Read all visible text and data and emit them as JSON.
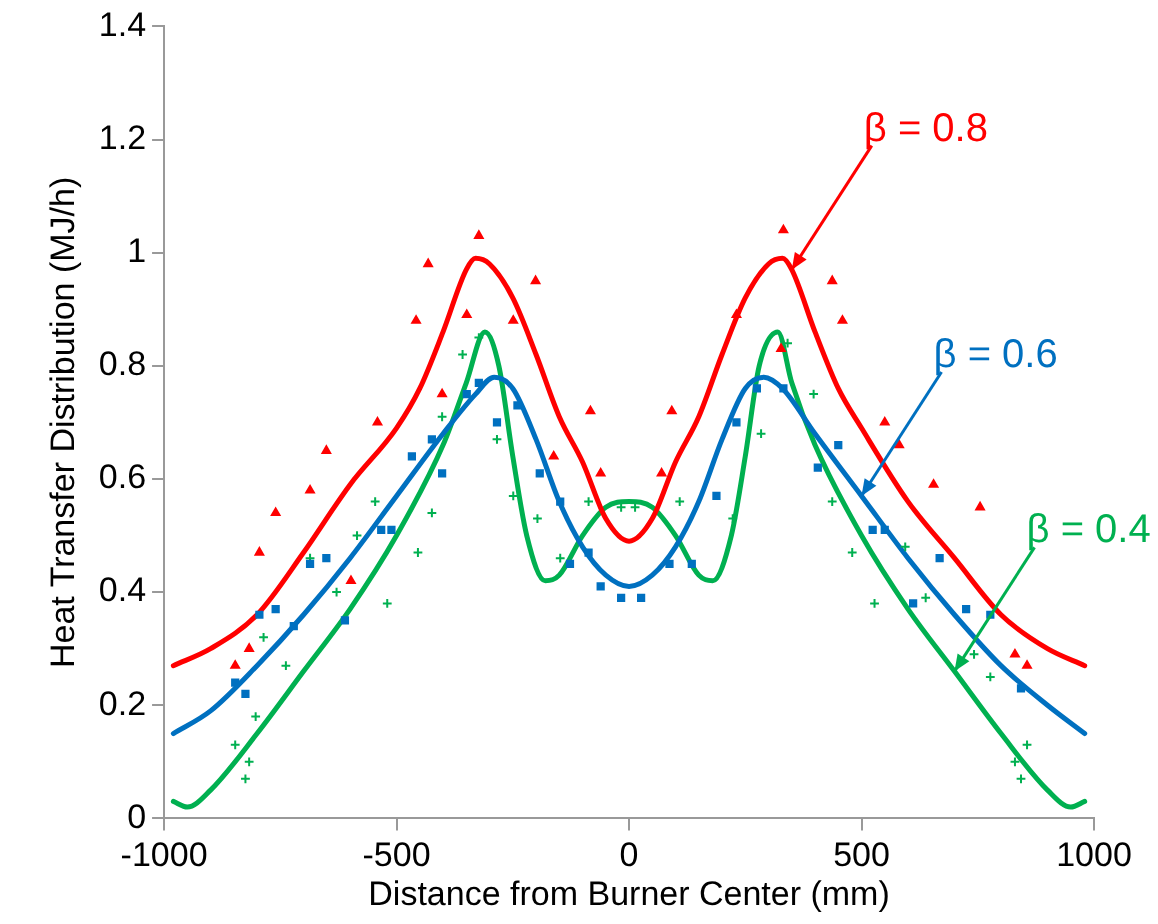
{
  "chart_data": {
    "type": "line",
    "xlabel": "Distance from Burner Center (mm)",
    "ylabel": "Heat Transfer Distribution (MJ/h)",
    "xlim": [
      -1000,
      1000
    ],
    "xticks": [
      -1000,
      -500,
      0,
      500,
      1000
    ],
    "ylim": [
      0,
      1.4
    ],
    "yticks": [
      0,
      0.2,
      0.4,
      0.6,
      0.8,
      1,
      1.2,
      1.4
    ],
    "grid": false,
    "legend": false,
    "annotations": [
      {
        "text": "β = 0.8",
        "x": 350,
        "y": 0.97
      },
      {
        "text": "β = 0.6",
        "x": 500,
        "y": 0.57
      },
      {
        "text": "β = 0.4",
        "x": 700,
        "y": 0.26
      }
    ],
    "series": [
      {
        "type": "line",
        "color": "#ff0000",
        "marker": "none",
        "x": [
          -980,
          -900,
          -800,
          -700,
          -600,
          -500,
          -450,
          -400,
          -350,
          -330,
          -300,
          -250,
          -200,
          -150,
          -100,
          -50,
          0,
          50,
          100,
          150,
          200,
          250,
          300,
          330,
          350,
          400,
          450,
          500,
          600,
          700,
          800,
          900,
          980
        ],
        "values": [
          0.27,
          0.3,
          0.36,
          0.47,
          0.59,
          0.69,
          0.76,
          0.86,
          0.97,
          0.99,
          0.98,
          0.92,
          0.82,
          0.71,
          0.63,
          0.53,
          0.49,
          0.53,
          0.63,
          0.71,
          0.82,
          0.92,
          0.98,
          0.99,
          0.97,
          0.86,
          0.76,
          0.69,
          0.56,
          0.46,
          0.36,
          0.3,
          0.27
        ]
      },
      {
        "type": "line",
        "color": "#0070c0",
        "marker": "none",
        "x": [
          -980,
          -900,
          -800,
          -700,
          -600,
          -500,
          -400,
          -330,
          -290,
          -250,
          -200,
          -150,
          -100,
          -50,
          0,
          50,
          100,
          150,
          200,
          250,
          290,
          330,
          400,
          500,
          600,
          700,
          800,
          900,
          980
        ],
        "values": [
          0.15,
          0.19,
          0.27,
          0.36,
          0.46,
          0.57,
          0.68,
          0.75,
          0.78,
          0.76,
          0.67,
          0.56,
          0.48,
          0.43,
          0.41,
          0.43,
          0.48,
          0.56,
          0.67,
          0.76,
          0.78,
          0.76,
          0.68,
          0.57,
          0.46,
          0.36,
          0.27,
          0.2,
          0.15
        ]
      },
      {
        "type": "line",
        "color": "#00b050",
        "marker": "none",
        "x": [
          -980,
          -950,
          -900,
          -800,
          -700,
          -600,
          -500,
          -400,
          -350,
          -310,
          -280,
          -250,
          -220,
          -180,
          -150,
          -100,
          -50,
          0,
          50,
          100,
          150,
          180,
          220,
          250,
          280,
          320,
          350,
          400,
          500,
          600,
          700,
          800,
          900,
          950,
          980
        ],
        "values": [
          0.03,
          0.02,
          0.05,
          0.15,
          0.26,
          0.37,
          0.5,
          0.66,
          0.77,
          0.86,
          0.8,
          0.64,
          0.5,
          0.42,
          0.43,
          0.5,
          0.55,
          0.56,
          0.55,
          0.5,
          0.43,
          0.42,
          0.5,
          0.64,
          0.8,
          0.86,
          0.77,
          0.66,
          0.5,
          0.37,
          0.26,
          0.15,
          0.05,
          0.02,
          0.03
        ]
      },
      {
        "type": "scatter",
        "color": "#ff0000",
        "marker": "triangle",
        "x": [
          -847,
          -817,
          -795,
          -760,
          -686,
          -651,
          -598,
          -541,
          -458,
          -432,
          -402,
          -349,
          -323,
          -249,
          -201,
          -162,
          -83,
          -61,
          70,
          92,
          231,
          327,
          332,
          437,
          459,
          550,
          581,
          655,
          755,
          830,
          856
        ],
        "values": [
          0.27,
          0.3,
          0.47,
          0.54,
          0.58,
          0.65,
          0.42,
          0.7,
          0.88,
          0.98,
          0.75,
          0.89,
          1.03,
          0.88,
          0.95,
          0.64,
          0.72,
          0.61,
          0.61,
          0.72,
          0.89,
          0.83,
          1.04,
          0.95,
          0.88,
          0.7,
          0.66,
          0.59,
          0.55,
          0.29,
          0.27
        ]
      },
      {
        "type": "scatter",
        "color": "#0070c0",
        "marker": "square",
        "x": [
          -847,
          -825,
          -795,
          -760,
          -721,
          -686,
          -651,
          -611,
          -533,
          -511,
          -467,
          -424,
          -402,
          -349,
          -323,
          -284,
          -240,
          -192,
          -148,
          -127,
          -87,
          -61,
          -17,
          26,
          87,
          135,
          188,
          231,
          275,
          332,
          406,
          450,
          524,
          550,
          611,
          668,
          725,
          777,
          843
        ],
        "values": [
          0.24,
          0.22,
          0.36,
          0.37,
          0.34,
          0.45,
          0.46,
          0.35,
          0.51,
          0.51,
          0.64,
          0.67,
          0.61,
          0.75,
          0.77,
          0.7,
          0.73,
          0.61,
          0.56,
          0.45,
          0.47,
          0.41,
          0.39,
          0.39,
          0.45,
          0.45,
          0.57,
          0.7,
          0.76,
          0.76,
          0.62,
          0.66,
          0.51,
          0.51,
          0.38,
          0.46,
          0.37,
          0.36,
          0.23
        ]
      },
      {
        "type": "scatter",
        "color": "#00b050",
        "marker": "cross",
        "x": [
          -847,
          -825,
          -817,
          -803,
          -786,
          -738,
          -686,
          -629,
          -585,
          -546,
          -520,
          -454,
          -424,
          -402,
          -358,
          -323,
          -284,
          -249,
          -197,
          -148,
          -87,
          -17,
          13,
          109,
          223,
          284,
          341,
          397,
          437,
          480,
          528,
          594,
          638,
          742,
          777,
          830,
          843,
          856
        ],
        "values": [
          0.13,
          0.07,
          0.1,
          0.18,
          0.32,
          0.27,
          0.46,
          0.4,
          0.5,
          0.56,
          0.38,
          0.47,
          0.54,
          0.71,
          0.82,
          0.85,
          0.67,
          0.57,
          0.53,
          0.46,
          0.56,
          0.55,
          0.55,
          0.56,
          0.53,
          0.68,
          0.84,
          0.75,
          0.56,
          0.47,
          0.38,
          0.48,
          0.39,
          0.29,
          0.25,
          0.1,
          0.07,
          0.13
        ]
      }
    ]
  }
}
